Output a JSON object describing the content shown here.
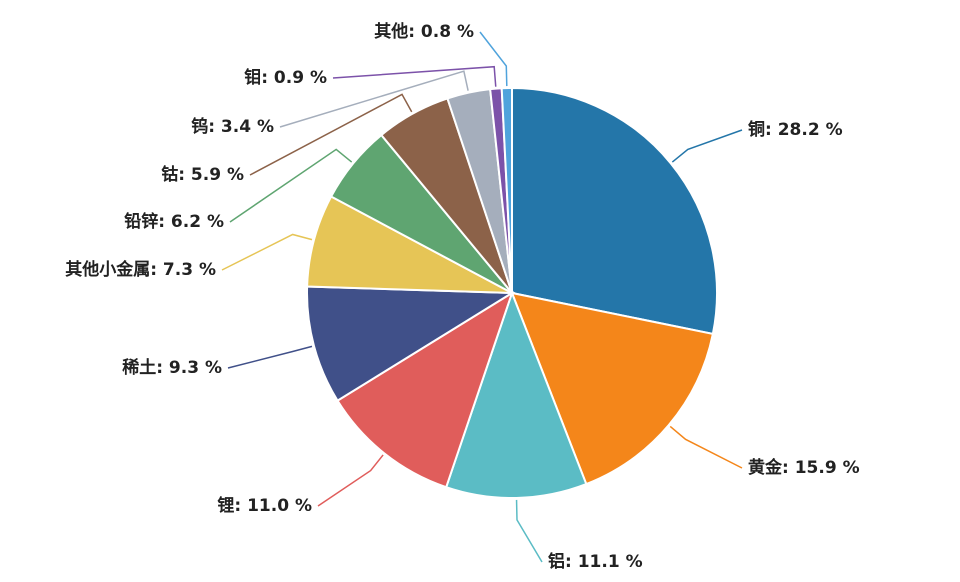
{
  "chart_data": {
    "type": "pie",
    "values": [
      28.2,
      15.9,
      11.1,
      11.0,
      9.3,
      7.3,
      6.2,
      5.9,
      3.4,
      0.9,
      0.8
    ],
    "value_labels": [
      "铜: 28.2 %",
      "黄金: 15.9 %",
      "铝: 11.1 %",
      "锂: 11.0 %",
      "稀土: 9.3 %",
      "其他小金属: 7.3 %",
      "铅锌: 6.2 %",
      "钴: 5.9 %",
      "钨: 3.4 %",
      "钼: 0.9 %",
      "其他: 0.8 %"
    ],
    "colors": [
      "#2476a9",
      "#f4861a",
      "#5bbcc5",
      "#e05d5b",
      "#405089",
      "#e6c556",
      "#5fa571",
      "#8c6249",
      "#a5aebc",
      "#7c52a9",
      "#4fa3dc"
    ]
  }
}
